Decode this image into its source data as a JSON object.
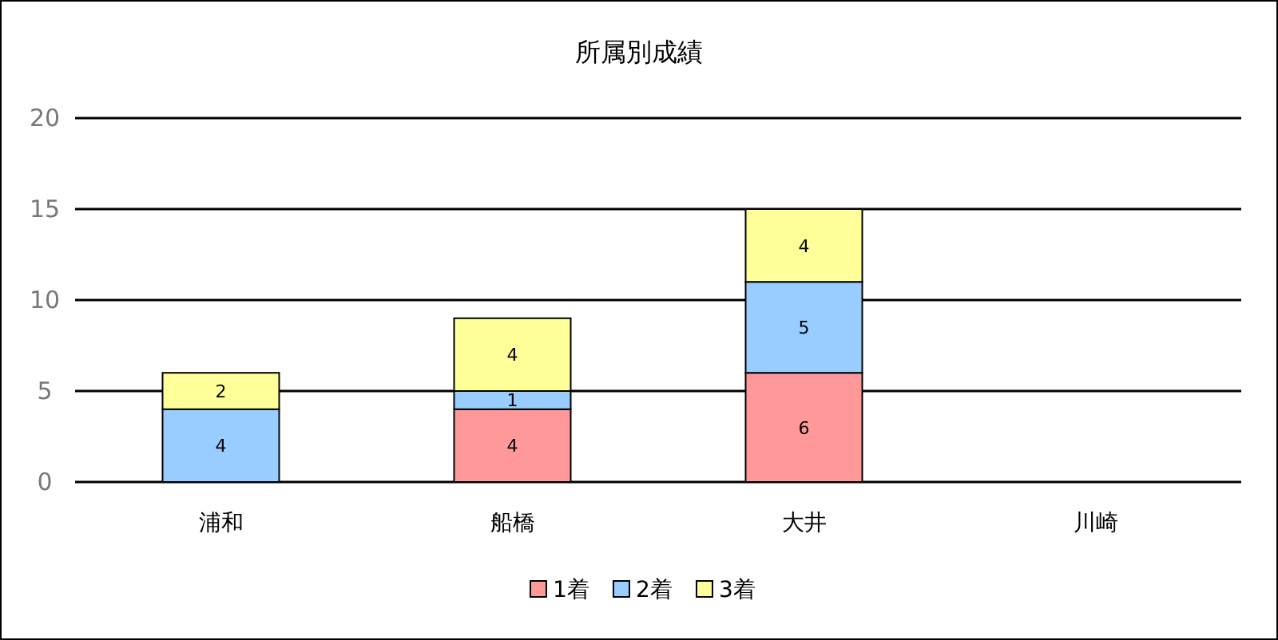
{
  "chart_data": {
    "type": "bar",
    "title": "所属別成績",
    "categories": [
      "浦和",
      "船橋",
      "大井",
      "川崎"
    ],
    "stacked": true,
    "series": [
      {
        "name": "1着",
        "color": "#ff9999",
        "values": [
          null,
          4,
          6,
          null
        ]
      },
      {
        "name": "2着",
        "color": "#99ccff",
        "values": [
          4,
          1,
          5,
          null
        ]
      },
      {
        "name": "3着",
        "color": "#ffff99",
        "values": [
          2,
          4,
          4,
          null
        ]
      }
    ],
    "ylim": [
      0,
      20
    ],
    "yticks": [
      0,
      5,
      10,
      15,
      20
    ],
    "grid": "y",
    "legend": "bottom",
    "data_labels": true
  }
}
